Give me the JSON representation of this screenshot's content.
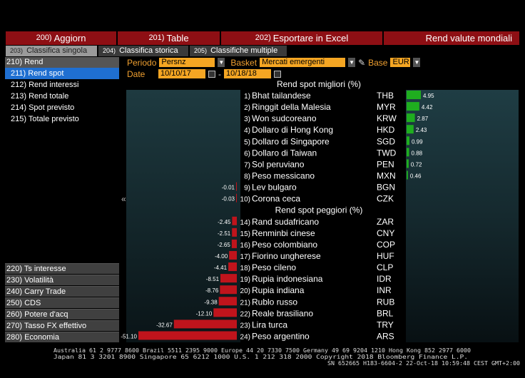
{
  "toolbar": {
    "buttons": [
      {
        "num": "200)",
        "label": "Aggiorn"
      },
      {
        "num": "201)",
        "label": "Table"
      },
      {
        "num": "202)",
        "label": "Esportare in Excel"
      }
    ],
    "title": "Rend valute mondiali"
  },
  "tabs": [
    {
      "num": "203)",
      "label": "Classifica singola"
    },
    {
      "num": "204)",
      "label": "Classifica storica"
    },
    {
      "num": "205)",
      "label": "Classifiche multiple"
    }
  ],
  "sidebar": {
    "header": "210) Rend",
    "items": [
      "211) Rend spot",
      "212) Rend interessi",
      "213) Rend totale",
      "214) Spot previsto",
      "215) Totale previsto"
    ],
    "sections": [
      "220) Ts interesse",
      "230) Volatilità",
      "240) Carry Trade",
      "250) CDS",
      "260) Potere d'acq",
      "270) Tasso FX effettivo",
      "280) Economia"
    ]
  },
  "filters": {
    "period_label": "Periodo",
    "period_value": "Persnz",
    "basket_label": "Basket",
    "basket_value": "Mercati emergenti",
    "base_label": "Base",
    "base_value": "EUR",
    "date_label": "Date",
    "date_from": "10/10/17",
    "date_sep": "-",
    "date_to": "10/18/18"
  },
  "footer": {
    "line1": "Australia 61 2 9777 8600 Brazil 5511 2395 9000 Europe 44 20 7330 7500 Germany 49 69 9204 1210 Hong Kong 852 2977 6000",
    "line2": "Japan 81 3 3201 8900       Singapore 65 6212 1000       U.S. 1 212 318 2000           Copyright 2018 Bloomberg Finance L.P.",
    "line3": "SN 652665 H183-6604-2 22-Oct-18 10:59:48 CEST GMT+2:00"
  },
  "colors": {
    "positive": "#1fae1f",
    "negative": "#c0141c",
    "accent": "#f5a623",
    "header_red": "#8e0f14"
  },
  "chart_data": {
    "type": "bar",
    "orientation": "horizontal",
    "best_title": "Rend spot migliori (%)",
    "worst_title": "Rend spot peggiori (%)",
    "best": [
      {
        "rank": "1)",
        "name": "Bhat tailandese",
        "code": "THB",
        "value": 4.95
      },
      {
        "rank": "2)",
        "name": "Ringgit della Malesia",
        "code": "MYR",
        "value": 4.42
      },
      {
        "rank": "3)",
        "name": "Won sudcoreano",
        "code": "KRW",
        "value": 2.87
      },
      {
        "rank": "4)",
        "name": "Dollaro di Hong Kong",
        "code": "HKD",
        "value": 2.43
      },
      {
        "rank": "5)",
        "name": "Dollaro di Singapore",
        "code": "SGD",
        "value": 0.99
      },
      {
        "rank": "6)",
        "name": "Dollaro di Taiwan",
        "code": "TWD",
        "value": 0.88
      },
      {
        "rank": "7)",
        "name": "Sol peruviano",
        "code": "PEN",
        "value": 0.72
      },
      {
        "rank": "8)",
        "name": "Peso messicano",
        "code": "MXN",
        "value": 0.46
      },
      {
        "rank": "9)",
        "name": "Lev bulgaro",
        "code": "BGN",
        "value": -0.01
      },
      {
        "rank": "10)",
        "name": "Corona ceca",
        "code": "CZK",
        "value": -0.03
      }
    ],
    "worst": [
      {
        "rank": "14)",
        "name": "Rand sudafricano",
        "code": "ZAR",
        "value": -2.45
      },
      {
        "rank": "15)",
        "name": "Renminbi cinese",
        "code": "CNY",
        "value": -2.51
      },
      {
        "rank": "16)",
        "name": "Peso colombiano",
        "code": "COP",
        "value": -2.65
      },
      {
        "rank": "17)",
        "name": "Fiorino ungherese",
        "code": "HUF",
        "value": -4.0
      },
      {
        "rank": "18)",
        "name": "Peso cileno",
        "code": "CLP",
        "value": -4.41
      },
      {
        "rank": "19)",
        "name": "Rupia indonesiana",
        "code": "IDR",
        "value": -8.51
      },
      {
        "rank": "20)",
        "name": "Rupia indiana",
        "code": "INR",
        "value": -8.76
      },
      {
        "rank": "21)",
        "name": "Rublo russo",
        "code": "RUB",
        "value": -9.38
      },
      {
        "rank": "22)",
        "name": "Reale brasiliano",
        "code": "BRL",
        "value": -12.1
      },
      {
        "rank": "23)",
        "name": "Lira turca",
        "code": "TRY",
        "value": -32.67
      },
      {
        "rank": "24)",
        "name": "Peso argentino",
        "code": "ARS",
        "value": -51.1
      }
    ]
  }
}
